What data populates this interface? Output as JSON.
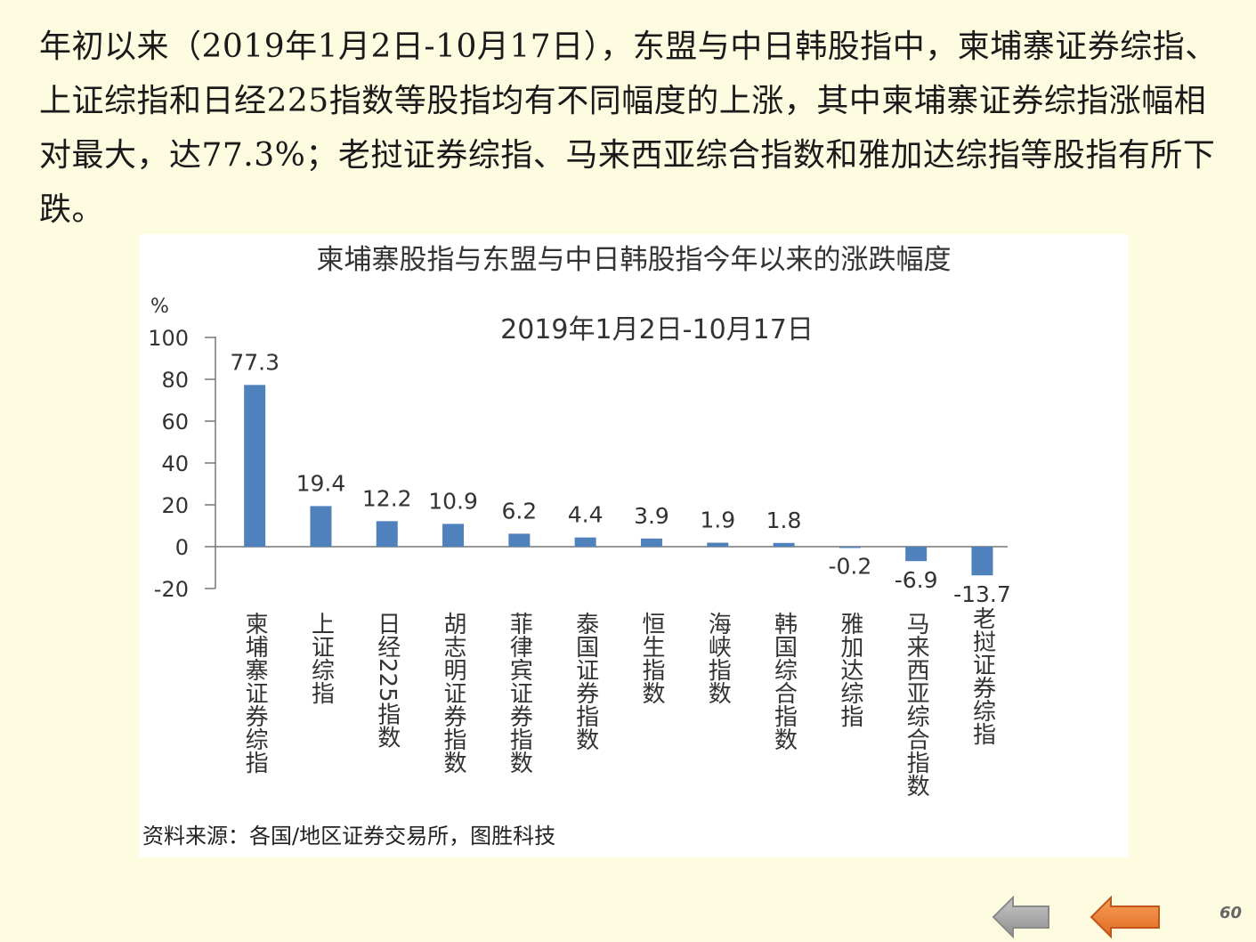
{
  "intro_text": "年初以来（2019年1月2日-10月17日），东盟与中日韩股指中，柬埔寨证券综指、上证综指和日经225指数等股指均有不同幅度的上涨，其中柬埔寨证券综指涨幅相对最大，达77.3%；老挝证券综指、马来西亚综合指数和雅加达综指等股指有所下跌。",
  "source_text": "资料来源：各国/地区证券交易所，图胜科技",
  "page_number": "60",
  "nav": {
    "prev_icon": "left-arrow-gray",
    "next_icon": "left-arrow-orange",
    "prev_color": "#a6a6a6",
    "next_color": "#f0863a"
  },
  "colors": {
    "bar": "#4f81bd",
    "background": "#fdfbe0"
  },
  "chart_data": {
    "type": "bar",
    "title": "柬埔寨股指与东盟与中日韩股指今年以来的涨跌幅度",
    "subtitle": "2019年1月2日-10月17日",
    "ylabel": "%",
    "xlabel": "",
    "ylim": [
      -20,
      100
    ],
    "yticks": [
      100,
      80,
      60,
      40,
      20,
      0,
      -20
    ],
    "grid": false,
    "categories": [
      "柬埔寨证券综指",
      "上证综指",
      "日经225指数",
      "胡志明证券指数",
      "菲律宾证券指数",
      "泰国证券指数",
      "恒生指数",
      "海峡指数",
      "韩国综合指数",
      "雅加达综指",
      "马来西亚综合指数",
      "老挝证券综指"
    ],
    "values": [
      77.3,
      19.4,
      12.2,
      10.9,
      6.2,
      4.4,
      3.9,
      1.9,
      1.8,
      -0.2,
      -6.9,
      -13.7
    ],
    "value_labels": [
      "77.3",
      "19.4",
      "12.2",
      "10.9",
      "6.2",
      "4.4",
      "3.9",
      "1.9",
      "1.8",
      "-0.2",
      "-6.9",
      "-13.7"
    ]
  }
}
